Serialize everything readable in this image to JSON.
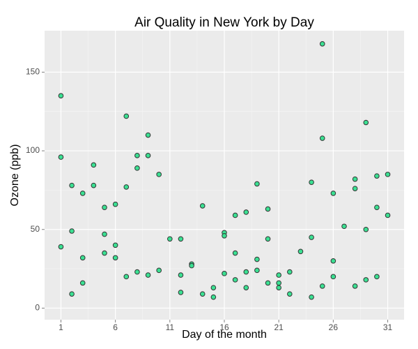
{
  "chart_data": {
    "type": "scatter",
    "title": "Air Quality in New York by Day",
    "x_label": "Day of the month",
    "y_label": "Ozone (ppb)",
    "x": [
      1,
      1,
      1,
      2,
      2,
      2,
      3,
      3,
      3,
      4,
      4,
      5,
      5,
      5,
      6,
      6,
      6,
      7,
      7,
      7,
      8,
      8,
      8,
      9,
      9,
      9,
      10,
      10,
      11,
      12,
      12,
      12,
      13,
      13,
      14,
      14,
      15,
      15,
      16,
      16,
      16,
      17,
      17,
      17,
      18,
      18,
      18,
      19,
      19,
      19,
      20,
      20,
      20,
      21,
      21,
      21,
      22,
      22,
      23,
      24,
      24,
      24,
      25,
      25,
      25,
      26,
      26,
      26,
      27,
      28,
      28,
      28,
      29,
      29,
      29,
      30,
      30,
      30,
      31,
      31
    ],
    "values": [
      135,
      96,
      39,
      78,
      49,
      9,
      73,
      32,
      16,
      91,
      78,
      64,
      47,
      35,
      66,
      40,
      32,
      122,
      77,
      20,
      97,
      89,
      23,
      110,
      97,
      21,
      85,
      24,
      44,
      44,
      21,
      10,
      28,
      27,
      65,
      9,
      13,
      7,
      48,
      46,
      22,
      59,
      35,
      18,
      61,
      23,
      13,
      79,
      31,
      24,
      63,
      44,
      16,
      21,
      16,
      13,
      23,
      9,
      36,
      80,
      45,
      7,
      168,
      108,
      14,
      73,
      30,
      20,
      52,
      82,
      76,
      14,
      118,
      50,
      18,
      84,
      64,
      20,
      85,
      59
    ],
    "color": "#3be092",
    "edge_color": "#333333",
    "xlim": [
      -0.5,
      32.5
    ],
    "ylim": [
      -7.35,
      176.35
    ],
    "xticks": [
      1,
      6,
      11,
      16,
      21,
      26,
      31
    ],
    "yticks": [
      0,
      50,
      100,
      150
    ],
    "grid": true
  }
}
